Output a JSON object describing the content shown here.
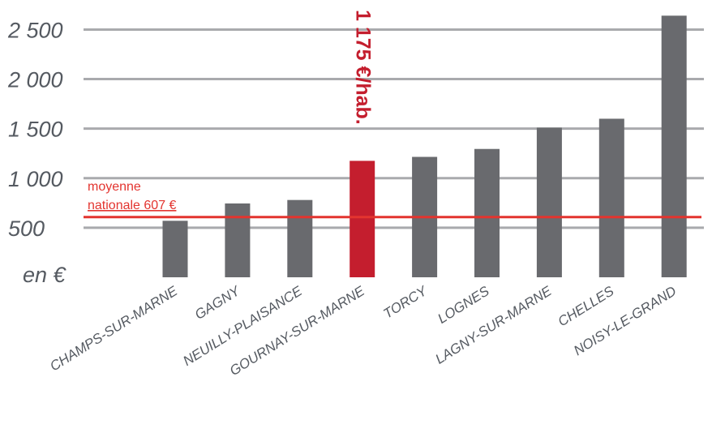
{
  "chart_data": {
    "type": "bar",
    "categories": [
      "CHAMPS-SUR-MARNE",
      "GAGNY",
      "NEUILLY-PLAISANCE",
      "GOURNAY-SUR-MARNE",
      "TORCY",
      "LOGNES",
      "LAGNY-SUR-MARNE",
      "CHELLES",
      "NOISY-LE-GRAND"
    ],
    "values": [
      570,
      745,
      780,
      1175,
      1215,
      1295,
      1510,
      1600,
      2640
    ],
    "highlight_index": 3,
    "ylim": [
      0,
      2700
    ],
    "yticks": [
      500,
      1000,
      1500,
      2000,
      2500
    ],
    "ytick_labels": [
      "500",
      "1 000",
      "1 500",
      "2 000",
      "2 500"
    ],
    "unit_label": "en €",
    "grid": true,
    "reference_line": {
      "value": 607,
      "label_line1": "moyenne",
      "label_line2": "nationale 607 €"
    },
    "callout": "1 175 €/hab.",
    "colors": {
      "bar": "#696a6e",
      "highlight": "#c41e2e",
      "reference": "#e3342f",
      "grid": "#a9aaad",
      "text": "#555a61"
    }
  }
}
